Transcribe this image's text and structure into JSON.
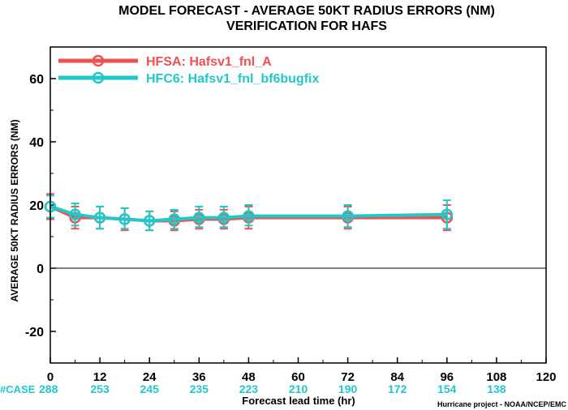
{
  "chart_data": {
    "type": "line",
    "title": "MODEL FORECAST - AVERAGE 50KT RADIUS ERRORS (NM)",
    "subtitle": "VERIFICATION FOR HAFS",
    "xlabel": "Forecast lead time (hr)",
    "ylabel": "AVERAGE 50KT RADIUS ERRORS (NM)",
    "xlim": [
      0,
      120
    ],
    "ylim": [
      -30,
      70
    ],
    "xticks": [
      "0",
      "12",
      "24",
      "36",
      "48",
      "60",
      "72",
      "84",
      "96",
      "108",
      "120"
    ],
    "yticks": [
      "-20",
      "0",
      "20",
      "40",
      "60"
    ],
    "grid": false,
    "legend_position": "top-left",
    "case_label": "#CASE",
    "cases": {
      "x": [
        0,
        12,
        24,
        36,
        48,
        60,
        72,
        84,
        96,
        108
      ],
      "counts": [
        "288",
        "253",
        "245",
        "235",
        "223",
        "210",
        "190",
        "172",
        "154",
        "138"
      ]
    },
    "series": [
      {
        "name": "HFSA: Hafsv1_fnl_A",
        "color": "#f05050",
        "x": [
          0,
          6,
          12,
          18,
          24,
          30,
          36,
          42,
          48,
          72,
          96
        ],
        "values": [
          19.5,
          16.0,
          16.0,
          15.5,
          15.0,
          15.0,
          15.5,
          15.5,
          16.0,
          16.0,
          16.0
        ],
        "err_low": [
          15.5,
          12.5,
          12.5,
          12.0,
          12.0,
          12.0,
          12.5,
          12.5,
          12.5,
          12.5,
          12.0
        ],
        "err_high": [
          23.5,
          19.5,
          19.5,
          19.0,
          18.0,
          18.0,
          18.5,
          18.5,
          19.5,
          19.5,
          20.0
        ]
      },
      {
        "name": "HFC6: Hafsv1_fnl_bf6bugfix",
        "color": "#22c8c8",
        "x": [
          0,
          6,
          12,
          18,
          24,
          30,
          36,
          42,
          48,
          72,
          96
        ],
        "values": [
          19.5,
          17.0,
          16.0,
          15.5,
          15.0,
          15.5,
          16.0,
          16.0,
          16.5,
          16.5,
          17.0
        ],
        "err_low": [
          16.0,
          13.5,
          12.5,
          12.5,
          12.0,
          12.5,
          13.0,
          13.0,
          13.5,
          13.0,
          12.5
        ],
        "err_high": [
          23.0,
          20.5,
          19.5,
          19.0,
          18.0,
          18.5,
          19.5,
          19.5,
          20.0,
          20.0,
          21.5
        ]
      }
    ],
    "credit": "Hurricane project - NOAA/NCEP/EMC"
  }
}
